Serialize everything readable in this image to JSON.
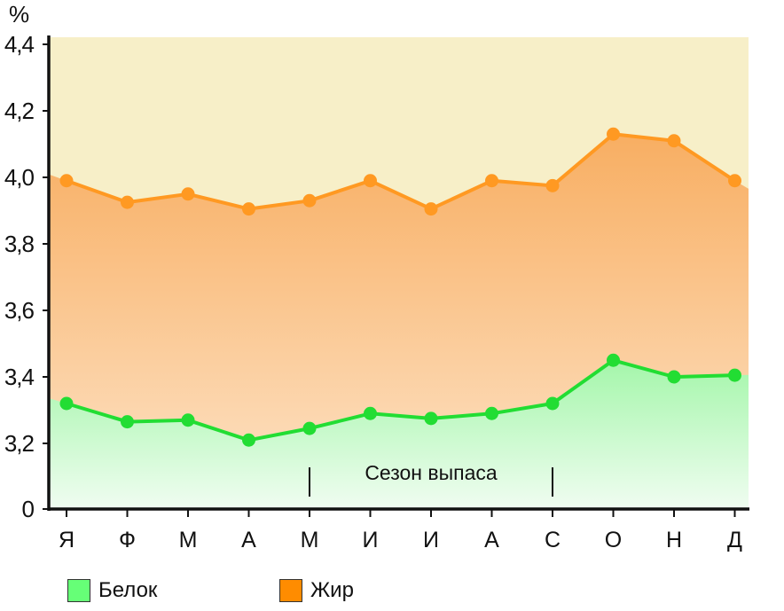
{
  "chart_data": {
    "type": "area",
    "unit_label": "%",
    "categories": [
      "Я",
      "Ф",
      "М",
      "А",
      "М",
      "И",
      "И",
      "А",
      "С",
      "О",
      "Н",
      "Д"
    ],
    "y_ticks": [
      {
        "label": "0",
        "value": 0
      },
      {
        "label": "3,2",
        "value": 3.2
      },
      {
        "label": "3,4",
        "value": 3.4
      },
      {
        "label": "3,6",
        "value": 3.6
      },
      {
        "label": "3,8",
        "value": 3.8
      },
      {
        "label": "4,0",
        "value": 4.0
      },
      {
        "label": "4,2",
        "value": 4.2
      },
      {
        "label": "4,4",
        "value": 4.4
      }
    ],
    "axis_break": "between 0 and 3,2",
    "ylim": [
      3.0,
      4.4
    ],
    "grid": false,
    "legend_position": "bottom-left",
    "series": [
      {
        "name": "Белок",
        "color": "#22dd33",
        "values": [
          3.32,
          3.265,
          3.27,
          3.21,
          3.245,
          3.29,
          3.275,
          3.29,
          3.32,
          3.45,
          3.4,
          3.405
        ]
      },
      {
        "name": "Жир",
        "color": "#ff9922",
        "values": [
          3.99,
          3.925,
          3.95,
          3.905,
          3.93,
          3.99,
          3.905,
          3.99,
          3.975,
          4.13,
          4.11,
          3.99
        ]
      }
    ],
    "annotation": {
      "text": "Сезон выпаса",
      "start_category_index": 4,
      "end_category_index": 8
    }
  },
  "colors": {
    "protein_legend": "#66ff77",
    "fat_legend": "#ff8c00",
    "background_top": "#f7efc8",
    "axis": "#111111"
  }
}
